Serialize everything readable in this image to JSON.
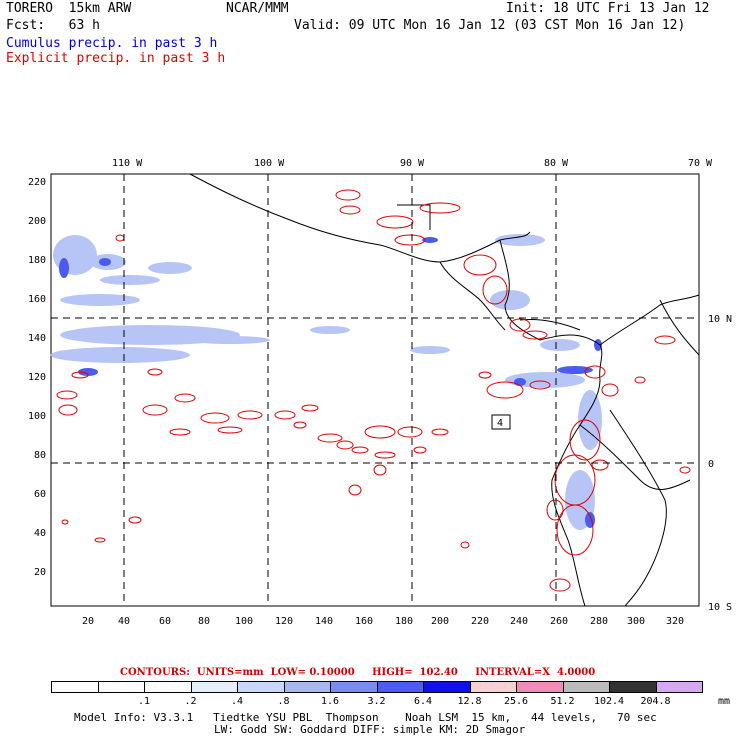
{
  "header": {
    "model": "TORERO  15km ARW",
    "org": "NCAR/MMM",
    "init": "Init: 18 UTC Fri 13 Jan 12",
    "fcst": "Fcst:   63 h",
    "valid": "Valid: 09 UTC Mon 16 Jan 12 (03 CST Mon 16 Jan 12)"
  },
  "legend": {
    "cumulus": "Cumulus precip. in past 3 h",
    "explicit": "Explicit precip. in past 3 h",
    "cumulus_color": "#0000cc",
    "explicit_color": "#e00000"
  },
  "axes": {
    "lon_labels": [
      "110 W",
      "100 W",
      "90 W",
      "80 W",
      "70 W"
    ],
    "lat_labels": [
      "10 N",
      "0",
      "10 S"
    ],
    "y_ticks": [
      "220",
      "200",
      "180",
      "160",
      "140",
      "120",
      "100",
      "80",
      "60",
      "40",
      "20"
    ],
    "x_ticks": [
      "20",
      "40",
      "60",
      "80",
      "100",
      "120",
      "140",
      "160",
      "180",
      "200",
      "220",
      "240",
      "260",
      "280",
      "300",
      "320"
    ]
  },
  "contours": {
    "units": "CONTOURS:  UNITS=mm",
    "low": "LOW= 0.10000",
    "high": "HIGH=  102.40",
    "interval": "INTERVAL=X  4.0000"
  },
  "colorbar": {
    "labels": [
      ".1",
      ".2",
      ".4",
      ".8",
      "1.6",
      "3.2",
      "6.4",
      "12.8",
      "25.6",
      "51.2",
      "102.4",
      "204.8"
    ],
    "unit": "mm",
    "colors": [
      "#ffffff",
      "#ffffff",
      "#ffffff",
      "#e6eefc",
      "#c8d8fa",
      "#a6b8f4",
      "#7a8cf0",
      "#4c5cf0",
      "#1010ee",
      "#f8d0d4",
      "#f08cb8",
      "#bbbbbb",
      "#333333",
      "#d8a8f8"
    ]
  },
  "footer": {
    "line1": "Model Info: V3.3.1   Tiedtke YSU PBL  Thompson    Noah LSM  15 km,   44 levels,   70 sec",
    "line2": "LW: Godd SW: Goddard DIFF: simple KM: 2D Smagor"
  },
  "map": {
    "station_label": "4"
  }
}
